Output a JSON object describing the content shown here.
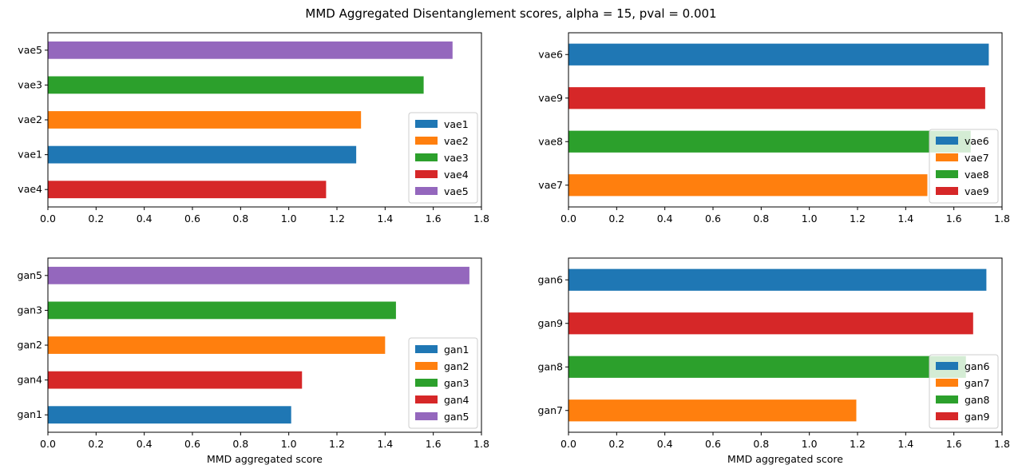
{
  "figure_title": "MMD Aggregated Disentanglement scores, alpha = 15, pval = 0.001",
  "chart_data": [
    {
      "type": "bar",
      "orientation": "horizontal",
      "categories": [
        "vae4",
        "vae1",
        "vae2",
        "vae3",
        "vae5"
      ],
      "values": [
        1.155,
        1.28,
        1.3,
        1.56,
        1.68
      ],
      "bar_colors": [
        "#d62728",
        "#1f77b4",
        "#ff7f0e",
        "#2ca02c",
        "#9467bd"
      ],
      "xlim": [
        0,
        1.8
      ],
      "xticks": [
        "0.0",
        "0.2",
        "0.4",
        "0.6",
        "0.8",
        "1.0",
        "1.2",
        "1.4",
        "1.6",
        "1.8"
      ],
      "xlabel": "",
      "legend": {
        "placement": "lower-right",
        "entries": [
          {
            "label": "vae1",
            "color": "#1f77b4"
          },
          {
            "label": "vae2",
            "color": "#ff7f0e"
          },
          {
            "label": "vae3",
            "color": "#2ca02c"
          },
          {
            "label": "vae4",
            "color": "#d62728"
          },
          {
            "label": "vae5",
            "color": "#9467bd"
          }
        ]
      }
    },
    {
      "type": "bar",
      "orientation": "horizontal",
      "categories": [
        "vae7",
        "vae8",
        "vae9",
        "vae6"
      ],
      "values": [
        1.49,
        1.67,
        1.73,
        1.745
      ],
      "bar_colors": [
        "#ff7f0e",
        "#2ca02c",
        "#d62728",
        "#1f77b4"
      ],
      "xlim": [
        0,
        1.8
      ],
      "xticks": [
        "0.0",
        "0.2",
        "0.4",
        "0.6",
        "0.8",
        "1.0",
        "1.2",
        "1.4",
        "1.6",
        "1.8"
      ],
      "xlabel": "",
      "legend": {
        "placement": "lower-right",
        "entries": [
          {
            "label": "vae6",
            "color": "#1f77b4"
          },
          {
            "label": "vae7",
            "color": "#ff7f0e"
          },
          {
            "label": "vae8",
            "color": "#2ca02c"
          },
          {
            "label": "vae9",
            "color": "#d62728"
          }
        ]
      }
    },
    {
      "type": "bar",
      "orientation": "horizontal",
      "categories": [
        "gan1",
        "gan4",
        "gan2",
        "gan3",
        "gan5"
      ],
      "values": [
        1.01,
        1.055,
        1.4,
        1.445,
        1.75
      ],
      "bar_colors": [
        "#1f77b4",
        "#d62728",
        "#ff7f0e",
        "#2ca02c",
        "#9467bd"
      ],
      "xlim": [
        0,
        1.8
      ],
      "xticks": [
        "0.0",
        "0.2",
        "0.4",
        "0.6",
        "0.8",
        "1.0",
        "1.2",
        "1.4",
        "1.6",
        "1.8"
      ],
      "xlabel": "MMD aggregated score",
      "legend": {
        "placement": "lower-right",
        "entries": [
          {
            "label": "gan1",
            "color": "#1f77b4"
          },
          {
            "label": "gan2",
            "color": "#ff7f0e"
          },
          {
            "label": "gan3",
            "color": "#2ca02c"
          },
          {
            "label": "gan4",
            "color": "#d62728"
          },
          {
            "label": "gan5",
            "color": "#9467bd"
          }
        ]
      }
    },
    {
      "type": "bar",
      "orientation": "horizontal",
      "categories": [
        "gan7",
        "gan8",
        "gan9",
        "gan6"
      ],
      "values": [
        1.195,
        1.65,
        1.68,
        1.735
      ],
      "bar_colors": [
        "#ff7f0e",
        "#2ca02c",
        "#d62728",
        "#1f77b4"
      ],
      "xlim": [
        0,
        1.8
      ],
      "xticks": [
        "0.0",
        "0.2",
        "0.4",
        "0.6",
        "0.8",
        "1.0",
        "1.2",
        "1.4",
        "1.6",
        "1.8"
      ],
      "xlabel": "MMD aggregated score",
      "legend": {
        "placement": "lower-right",
        "entries": [
          {
            "label": "gan6",
            "color": "#1f77b4"
          },
          {
            "label": "gan7",
            "color": "#ff7f0e"
          },
          {
            "label": "gan8",
            "color": "#2ca02c"
          },
          {
            "label": "gan9",
            "color": "#d62728"
          }
        ]
      }
    }
  ]
}
